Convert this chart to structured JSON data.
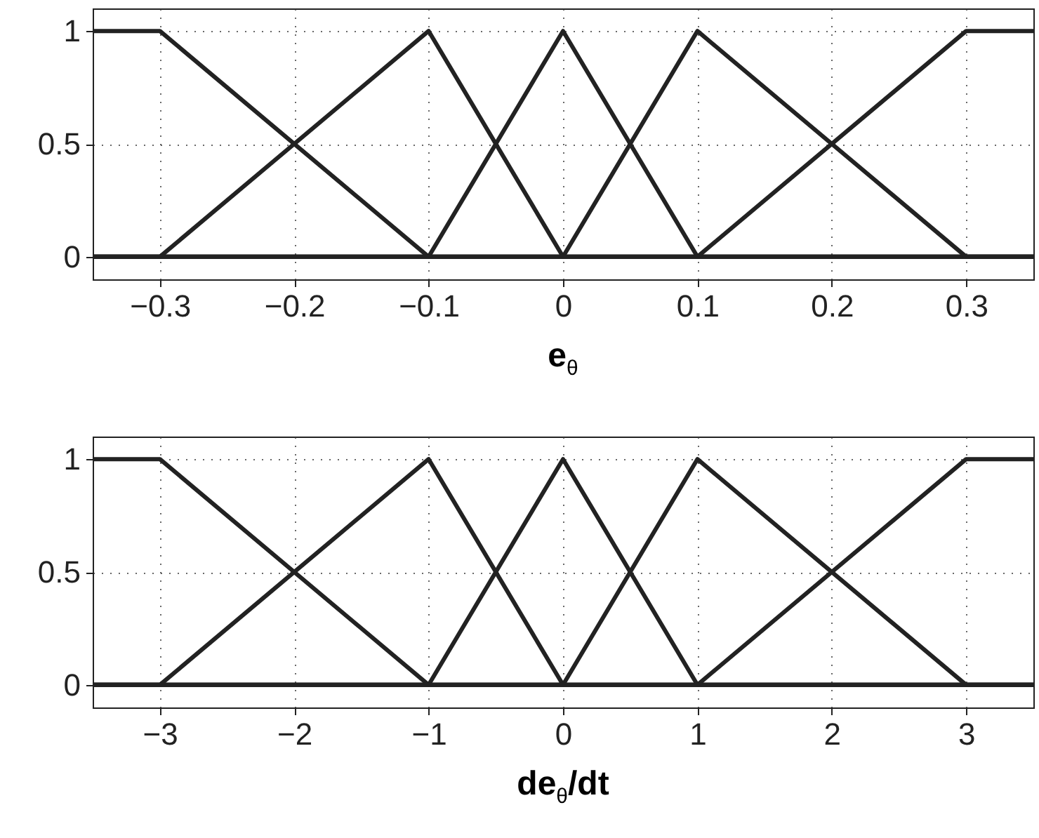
{
  "chart_data": [
    {
      "type": "line",
      "xlabel": "e$_{θ}$",
      "xlim": [
        -0.35,
        0.35
      ],
      "ylim": [
        -0.1,
        1.1
      ],
      "xticks": [
        -0.3,
        -0.2,
        -0.1,
        0,
        0.1,
        0.2,
        0.3
      ],
      "yticks": [
        0,
        0.5,
        1
      ],
      "grid": true,
      "series": [
        {
          "color": "#222222",
          "x": [
            -0.35,
            -0.3,
            -0.1,
            0.35
          ],
          "values": [
            1,
            1,
            0,
            0
          ]
        },
        {
          "color": "#222222",
          "x": [
            -0.35,
            -0.3,
            -0.1,
            0,
            0.35
          ],
          "values": [
            0,
            0,
            1,
            0,
            0
          ]
        },
        {
          "color": "#222222",
          "x": [
            -0.35,
            -0.1,
            0,
            0.1,
            0.35
          ],
          "values": [
            0,
            0,
            1,
            0,
            0
          ]
        },
        {
          "color": "#222222",
          "x": [
            -0.35,
            0,
            0.1,
            0.3,
            0.35
          ],
          "values": [
            0,
            0,
            1,
            0,
            0
          ]
        },
        {
          "color": "#222222",
          "x": [
            -0.35,
            0.1,
            0.3,
            0.35
          ],
          "values": [
            0,
            0,
            1,
            1
          ]
        }
      ]
    },
    {
      "type": "line",
      "xlabel": "de$_{θ}$/dt",
      "xlim": [
        -3.5,
        3.5
      ],
      "ylim": [
        -0.1,
        1.1
      ],
      "xticks": [
        -3,
        -2,
        -1,
        0,
        1,
        2,
        3
      ],
      "yticks": [
        0,
        0.5,
        1
      ],
      "grid": true,
      "series": [
        {
          "color": "#222222",
          "x": [
            -3.5,
            -3,
            -1,
            3.5
          ],
          "values": [
            1,
            1,
            0,
            0
          ]
        },
        {
          "color": "#222222",
          "x": [
            -3.5,
            -3,
            -1,
            0,
            3.5
          ],
          "values": [
            0,
            0,
            1,
            0,
            0
          ]
        },
        {
          "color": "#222222",
          "x": [
            -3.5,
            -1,
            0,
            1,
            3.5
          ],
          "values": [
            0,
            0,
            1,
            0,
            0
          ]
        },
        {
          "color": "#222222",
          "x": [
            -3.5,
            0,
            1,
            3,
            3.5
          ],
          "values": [
            0,
            0,
            1,
            0,
            0
          ]
        },
        {
          "color": "#222222",
          "x": [
            -3.5,
            1,
            3,
            3.5
          ],
          "values": [
            0,
            0,
            1,
            1
          ]
        }
      ]
    }
  ]
}
